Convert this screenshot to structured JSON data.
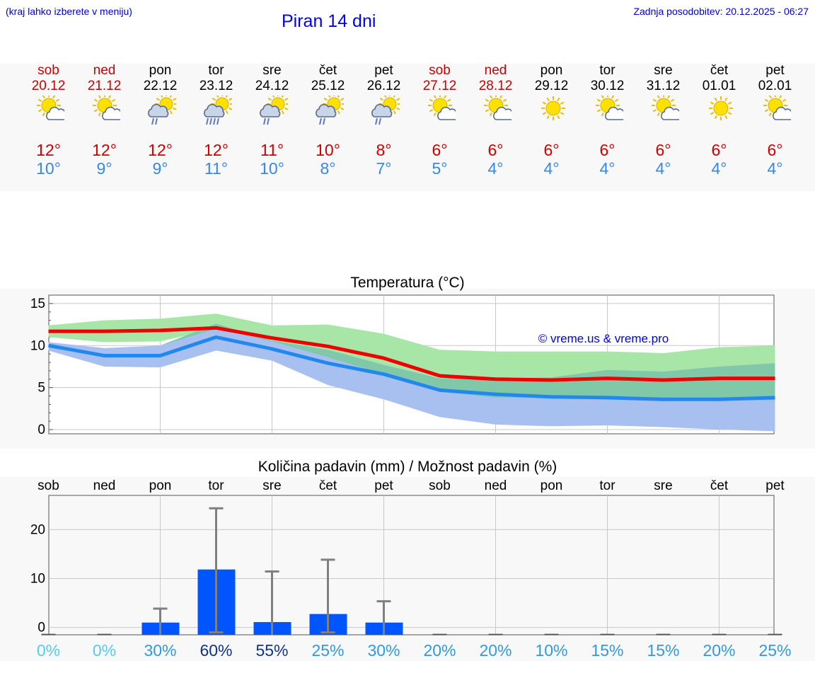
{
  "header": {
    "hint": "(kraj lahko izberete v meniju)",
    "title": "Piran 14 dni",
    "updated": "Zadnja posodobitev: 20.12.2025 - 06:27"
  },
  "days": [
    {
      "name": "sob",
      "date": "20.12",
      "weekend": true,
      "icon": "sun-cloud-icon",
      "tmax": "12°",
      "tmin": "10°"
    },
    {
      "name": "ned",
      "date": "21.12",
      "weekend": true,
      "icon": "sun-cloud-icon",
      "tmax": "12°",
      "tmin": "9°"
    },
    {
      "name": "pon",
      "date": "22.12",
      "weekend": false,
      "icon": "sun-cloud-rain-icon",
      "tmax": "12°",
      "tmin": "9°"
    },
    {
      "name": "tor",
      "date": "23.12",
      "weekend": false,
      "icon": "sun-cloud-heavy-rain-icon",
      "tmax": "12°",
      "tmin": "11°"
    },
    {
      "name": "sre",
      "date": "24.12",
      "weekend": false,
      "icon": "sun-cloud-rain-icon",
      "tmax": "11°",
      "tmin": "10°"
    },
    {
      "name": "čet",
      "date": "25.12",
      "weekend": false,
      "icon": "sun-cloud-rain-icon",
      "tmax": "10°",
      "tmin": "8°"
    },
    {
      "name": "pet",
      "date": "26.12",
      "weekend": false,
      "icon": "sun-cloud-rain-icon",
      "tmax": "8°",
      "tmin": "7°"
    },
    {
      "name": "sob",
      "date": "27.12",
      "weekend": true,
      "icon": "sun-cloud-icon",
      "tmax": "6°",
      "tmin": "5°"
    },
    {
      "name": "ned",
      "date": "28.12",
      "weekend": true,
      "icon": "sun-cloud-icon",
      "tmax": "6°",
      "tmin": "4°"
    },
    {
      "name": "pon",
      "date": "29.12",
      "weekend": false,
      "icon": "sun-icon",
      "tmax": "6°",
      "tmin": "4°"
    },
    {
      "name": "tor",
      "date": "30.12",
      "weekend": false,
      "icon": "sun-cloud-icon",
      "tmax": "6°",
      "tmin": "4°"
    },
    {
      "name": "sre",
      "date": "31.12",
      "weekend": false,
      "icon": "sun-cloud-icon",
      "tmax": "6°",
      "tmin": "4°"
    },
    {
      "name": "čet",
      "date": "01.01",
      "weekend": false,
      "icon": "sun-icon",
      "tmax": "6°",
      "tmin": "4°"
    },
    {
      "name": "pet",
      "date": "02.01",
      "weekend": false,
      "icon": "sun-cloud-icon",
      "tmax": "6°",
      "tmin": "4°"
    }
  ],
  "colors": {
    "weekend": "#cc0000",
    "tmax": "#cc0000",
    "tmin": "#3388ee",
    "max_line": "#ee0000",
    "min_line": "#2288ee",
    "max_band": "#a8e6a8",
    "min_band": "#a8c0f0",
    "overlap_band": "#80c8a8",
    "precip_bar": "#0055ff",
    "error_bar": "#808080"
  },
  "chart_data": [
    {
      "type": "line",
      "title": "Temperatura (°C)",
      "watermark": "© vreme.us & vreme.pro",
      "ylim": [
        -0.5,
        16
      ],
      "yticks": [
        "0",
        "5",
        "10",
        "15"
      ],
      "x": [
        0,
        1,
        2,
        3,
        4,
        5,
        6,
        7,
        8,
        9,
        10,
        11,
        12,
        13
      ],
      "series": [
        {
          "name": "max",
          "values": [
            11.7,
            11.7,
            11.8,
            12.1,
            10.9,
            9.9,
            8.5,
            6.4,
            6.0,
            5.9,
            6.1,
            5.9,
            6.1,
            6.1
          ]
        },
        {
          "name": "min",
          "values": [
            10.0,
            8.8,
            8.8,
            11.0,
            9.6,
            7.9,
            6.6,
            4.7,
            4.2,
            3.9,
            3.8,
            3.6,
            3.6,
            3.8
          ]
        },
        {
          "name": "max_range_high",
          "values": [
            12.4,
            13.0,
            13.2,
            13.8,
            12.4,
            12.5,
            11.4,
            9.5,
            9.3,
            9.3,
            9.3,
            9.1,
            9.8,
            10.0
          ]
        },
        {
          "name": "max_range_low",
          "values": [
            11.0,
            10.4,
            10.5,
            12.0,
            10.5,
            8.6,
            6.6,
            4.5,
            3.8,
            3.8,
            3.8,
            3.6,
            3.5,
            3.5
          ]
        },
        {
          "name": "min_range_high",
          "values": [
            10.4,
            9.7,
            10.0,
            12.6,
            10.6,
            9.5,
            7.7,
            6.1,
            6.1,
            6.2,
            7.1,
            6.9,
            7.5,
            7.9
          ]
        },
        {
          "name": "min_range_low",
          "values": [
            9.4,
            7.5,
            7.4,
            9.4,
            8.2,
            5.3,
            3.6,
            1.5,
            0.6,
            0.4,
            0.5,
            0.3,
            0.0,
            -0.2
          ]
        }
      ]
    },
    {
      "type": "bar",
      "title": "Količina padavin (mm) / Možnost padavin (%)",
      "ylim": [
        -1.5,
        27
      ],
      "yticks": [
        "0",
        "10",
        "20"
      ],
      "categories": [
        "sob",
        "ned",
        "pon",
        "tor",
        "sre",
        "čet",
        "pet",
        "sob",
        "ned",
        "pon",
        "tor",
        "sre",
        "čet",
        "pet"
      ],
      "values": [
        0,
        0,
        1.0,
        13.3,
        1.1,
        4.2,
        1.0,
        0,
        0,
        0,
        0,
        0,
        0,
        0
      ],
      "error_high": [
        0,
        0,
        5.3,
        25.8,
        12.9,
        15.3,
        6.8,
        0,
        0,
        0,
        0,
        0,
        0,
        0
      ],
      "probability": [
        "0%",
        "0%",
        "30%",
        "60%",
        "55%",
        "25%",
        "30%",
        "20%",
        "20%",
        "10%",
        "15%",
        "15%",
        "20%",
        "25%"
      ],
      "probability_values": [
        0,
        0,
        30,
        60,
        55,
        25,
        30,
        20,
        20,
        10,
        15,
        15,
        20,
        25
      ]
    }
  ]
}
